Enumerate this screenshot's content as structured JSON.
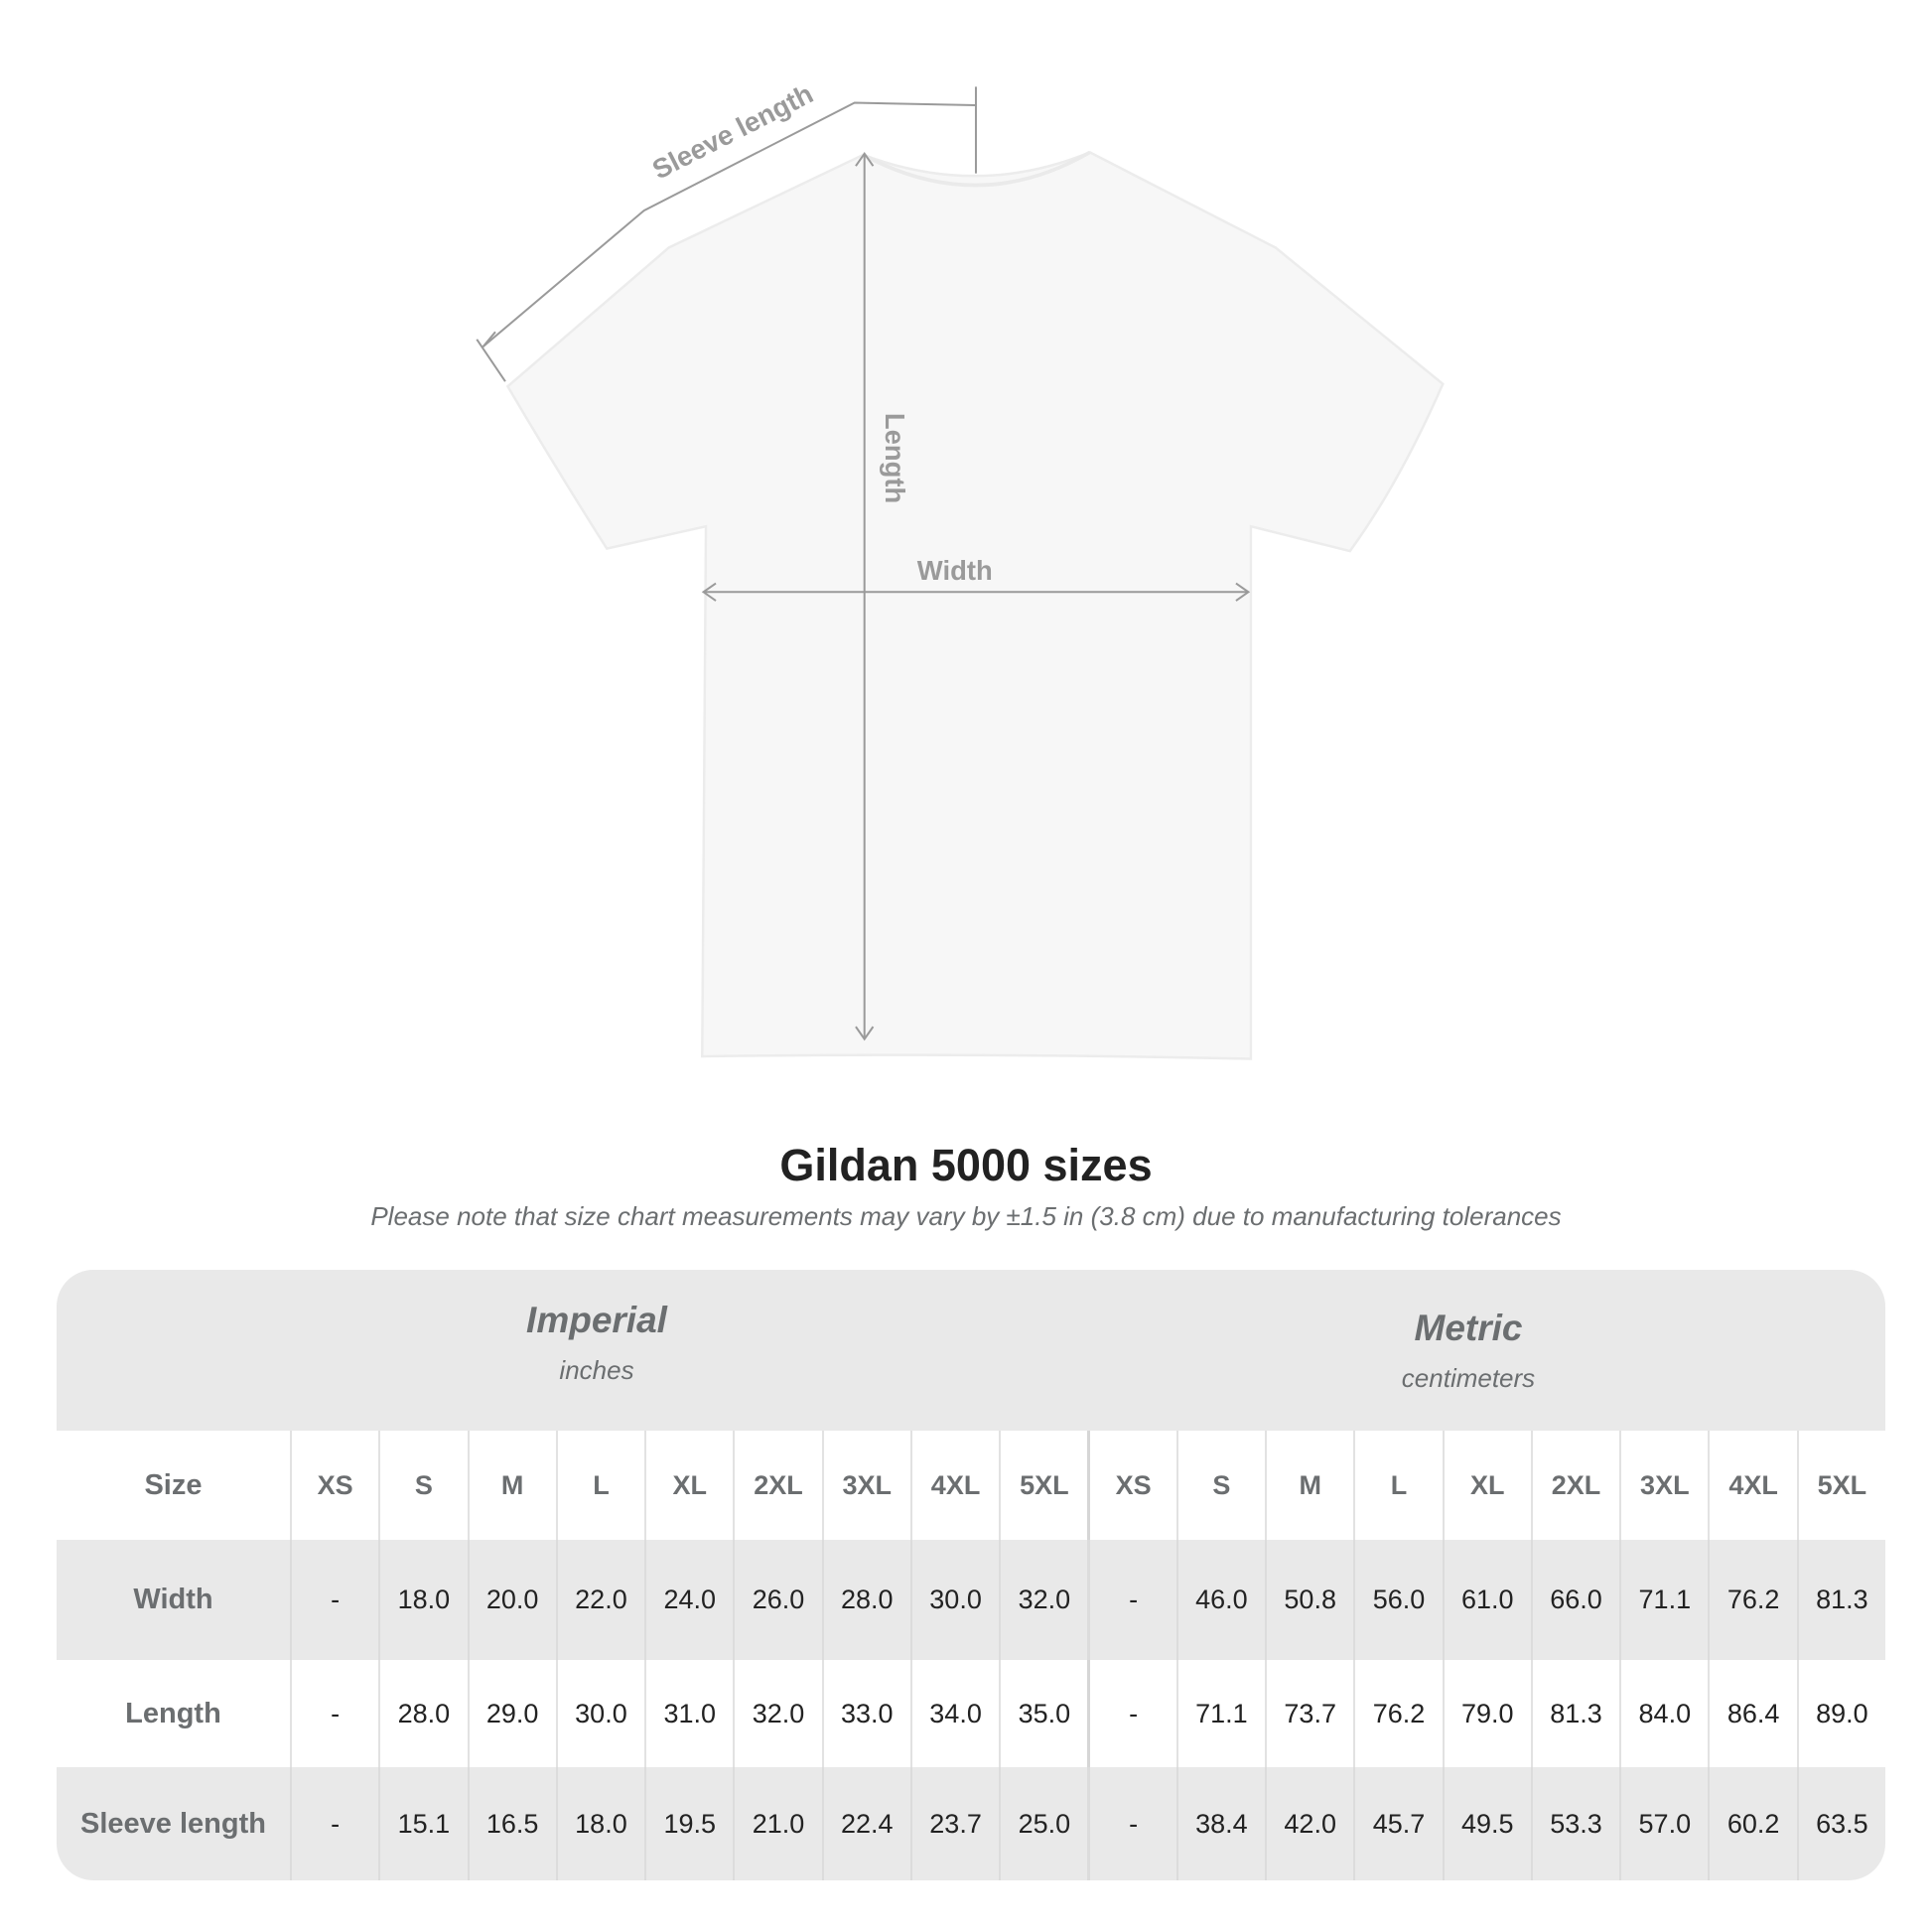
{
  "diagram": {
    "labels": {
      "sleeve": "Sleeve length",
      "length": "Length",
      "width": "Width"
    }
  },
  "title": "Gildan 5000 sizes",
  "subtitle": "Please note that size chart measurements may vary by ±1.5 in (3.8 cm) due to manufacturing tolerances",
  "table": {
    "imperial": {
      "name": "Imperial",
      "unit": "inches"
    },
    "metric": {
      "name": "Metric",
      "unit": "centimeters"
    },
    "size_label": "Size",
    "sizes": [
      "XS",
      "S",
      "M",
      "L",
      "XL",
      "2XL",
      "3XL",
      "4XL",
      "5XL",
      "XS",
      "S",
      "M",
      "L",
      "XL",
      "2XL",
      "3XL",
      "4XL",
      "5XL"
    ],
    "rows": [
      {
        "label": "Width",
        "values": [
          "-",
          "18.0",
          "20.0",
          "22.0",
          "24.0",
          "26.0",
          "28.0",
          "30.0",
          "32.0",
          "-",
          "46.0",
          "50.8",
          "56.0",
          "61.0",
          "66.0",
          "71.1",
          "76.2",
          "81.3"
        ]
      },
      {
        "label": "Length",
        "values": [
          "-",
          "28.0",
          "29.0",
          "30.0",
          "31.0",
          "32.0",
          "33.0",
          "34.0",
          "35.0",
          "-",
          "71.1",
          "73.7",
          "76.2",
          "79.0",
          "81.3",
          "84.0",
          "86.4",
          "89.0"
        ]
      },
      {
        "label": "Sleeve length",
        "values": [
          "-",
          "15.1",
          "16.5",
          "18.0",
          "19.5",
          "21.0",
          "22.4",
          "23.7",
          "25.0",
          "-",
          "38.4",
          "42.0",
          "45.7",
          "49.5",
          "53.3",
          "57.0",
          "60.2",
          "63.5"
        ]
      }
    ]
  },
  "colors": {
    "band": "#e9e9e9",
    "header_text": "#6b6e70",
    "value_text": "#222222"
  }
}
